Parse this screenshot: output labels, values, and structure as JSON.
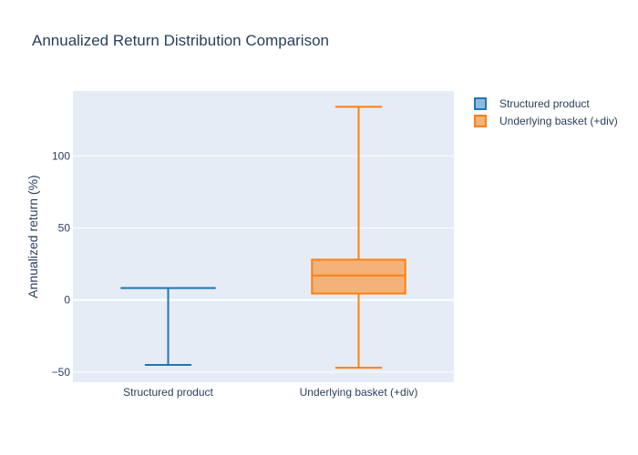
{
  "chart_data": {
    "type": "box",
    "title": "Annualized Return Distribution Comparison",
    "ylabel": "Annualized return (%)",
    "xlabel": "",
    "ylim": [
      -57,
      145
    ],
    "yticks": [
      -50,
      0,
      50,
      100
    ],
    "ytick_labels": [
      "−50",
      "0",
      "50",
      "100"
    ],
    "grid": true,
    "legend_position": "top-right",
    "categories": [
      "Structured product",
      "Underlying basket (+div)"
    ],
    "series": [
      {
        "name": "Structured product",
        "color": "#1f77b4",
        "fill": "#8fbbda",
        "min": -45,
        "q1": 8.3,
        "median": 8.3,
        "q3": 8.3,
        "max": 8.3
      },
      {
        "name": "Underlying basket (+div)",
        "color": "#ff7f0e",
        "fill": "#f3b27a",
        "min": -47,
        "q1": 4.5,
        "median": 17,
        "q3": 28,
        "max": 134
      }
    ]
  }
}
